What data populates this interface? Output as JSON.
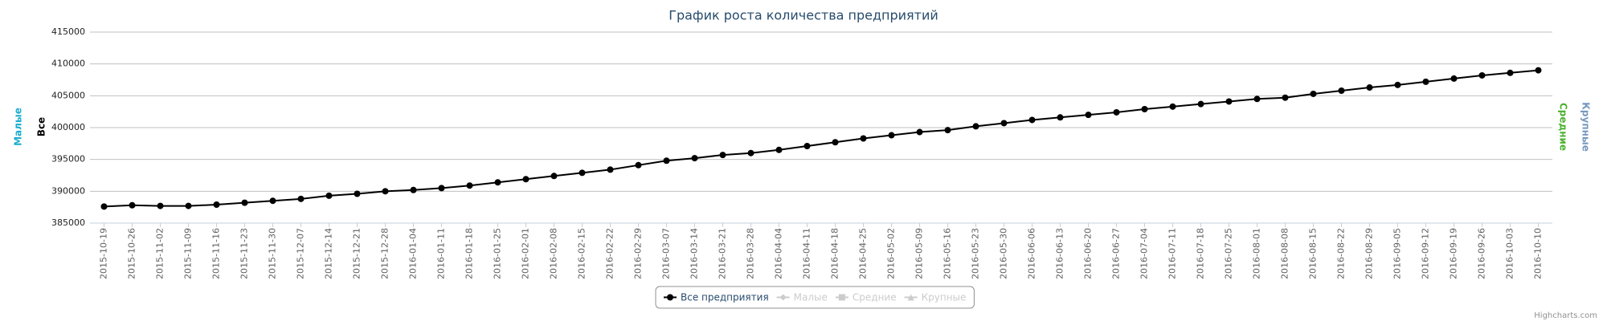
{
  "chart_data": {
    "type": "line",
    "title": "График роста количества предприятий",
    "credits": "Highcharts.com",
    "categories": [
      "2015-10-19",
      "2015-10-26",
      "2015-11-02",
      "2015-11-09",
      "2015-11-16",
      "2015-11-23",
      "2015-11-30",
      "2015-12-07",
      "2015-12-14",
      "2015-12-21",
      "2015-12-28",
      "2016-01-04",
      "2016-01-11",
      "2016-01-18",
      "2016-01-25",
      "2016-02-01",
      "2016-02-08",
      "2016-02-15",
      "2016-02-22",
      "2016-02-29",
      "2016-03-07",
      "2016-03-14",
      "2016-03-21",
      "2016-03-28",
      "2016-04-04",
      "2016-04-11",
      "2016-04-18",
      "2016-04-25",
      "2016-05-02",
      "2016-05-09",
      "2016-05-16",
      "2016-05-23",
      "2016-05-30",
      "2016-06-06",
      "2016-06-13",
      "2016-06-20",
      "2016-06-27",
      "2016-07-04",
      "2016-07-11",
      "2016-07-18",
      "2016-07-25",
      "2016-08-01",
      "2016-08-08",
      "2016-08-15",
      "2016-08-22",
      "2016-08-29",
      "2016-09-05",
      "2016-09-12",
      "2016-09-19",
      "2016-09-26",
      "2016-10-03",
      "2016-10-10"
    ],
    "series": [
      {
        "name": "Все предприятия",
        "color": "#000000",
        "visible": true,
        "marker": "circle",
        "axis_title": "Все",
        "axis_color": "#000000",
        "side": "left",
        "values": [
          387600,
          387800,
          387700,
          387700,
          387900,
          388200,
          388500,
          388800,
          389300,
          389600,
          390000,
          390200,
          390500,
          390900,
          391400,
          391900,
          392400,
          392900,
          393400,
          394100,
          394800,
          395200,
          395700,
          396000,
          396500,
          397100,
          397700,
          398300,
          398800,
          399300,
          399600,
          400200,
          400700,
          401200,
          401600,
          402000,
          402400,
          402900,
          403300,
          403700,
          404100,
          404500,
          404700,
          405300,
          405800,
          406300,
          406700,
          407200,
          407700,
          408200,
          408600,
          409000
        ]
      },
      {
        "name": "Малые",
        "color": "#1aadce",
        "visible": false,
        "marker": "diamond",
        "axis_title": "Малые",
        "axis_color": "#1aadce",
        "side": "left"
      },
      {
        "name": "Средние",
        "color": "#4cb030",
        "visible": false,
        "marker": "square",
        "axis_title": "Средние",
        "axis_color": "#4cb030",
        "side": "right"
      },
      {
        "name": "Крупные",
        "color": "#7798bf",
        "visible": false,
        "marker": "triangle",
        "axis_title": "Крупные",
        "axis_color": "#7798bf",
        "side": "right"
      }
    ],
    "ylim": [
      385000,
      415000
    ],
    "yticks": [
      385000,
      390000,
      395000,
      400000,
      405000,
      410000,
      415000
    ],
    "grid": true
  }
}
